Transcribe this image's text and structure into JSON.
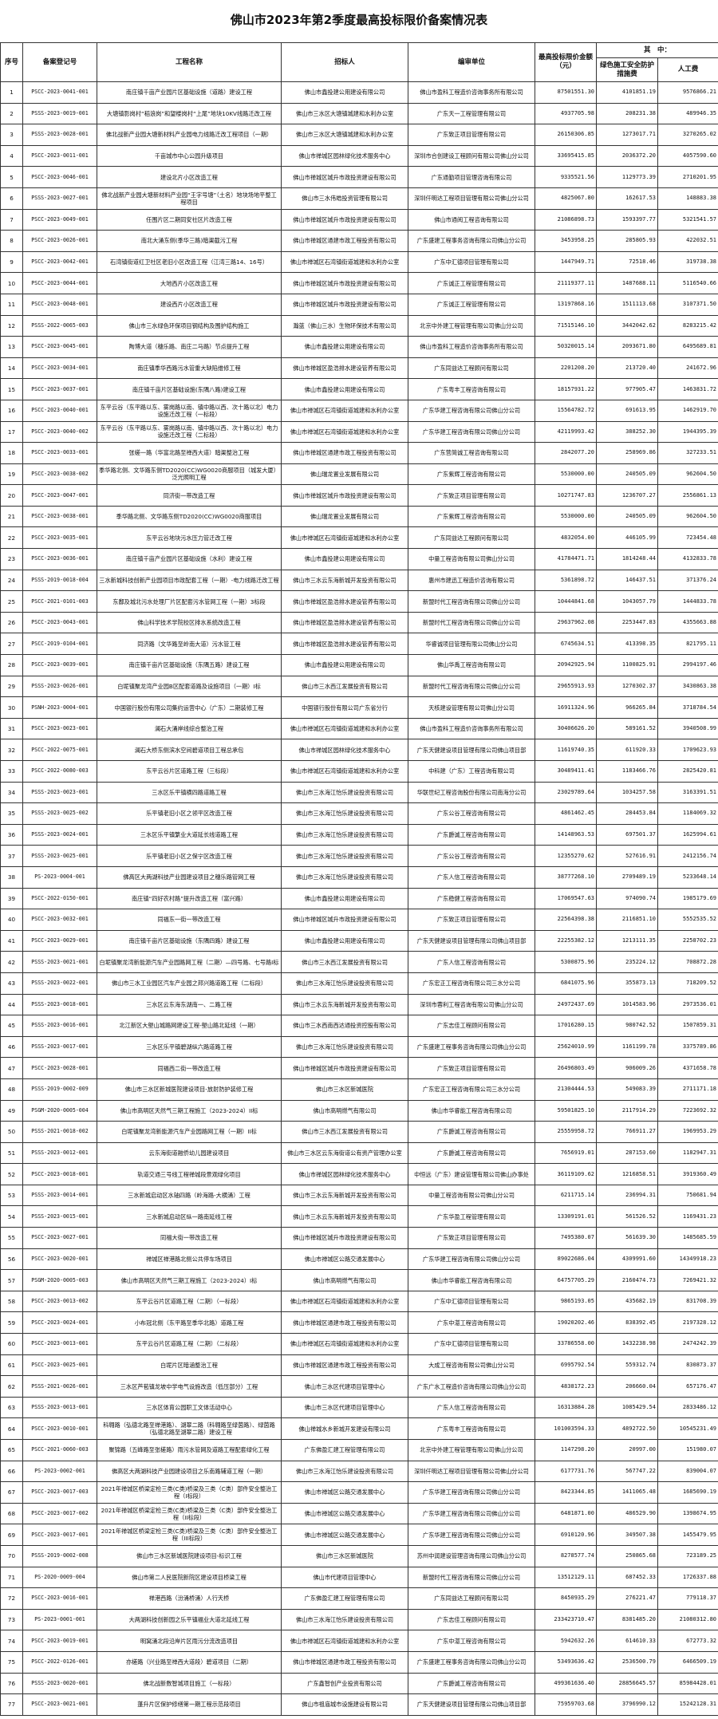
{
  "title": "佛山市2023年第2季度最高投标限价备案情况表",
  "headers": {
    "no": "序号",
    "code": "备案登记号",
    "name": "工程名称",
    "tenderer": "招标人",
    "compiler": "编审单位",
    "amount": "最高投标限价金额（元）",
    "of_which": "其　中：",
    "green": "绿色施工安全防护措施费",
    "labor": "人工费"
  },
  "rows": [
    [
      "1",
      "PSCC-2023-0041-001",
      "南庄镇千亩产业园片区基础设施（道路）建设工程",
      "佛山市鑫投建公用建设有限公司",
      "佛山市盈科工程造价咨询事务所有限公司",
      "87501551.30",
      "4101851.19",
      "9576866.21"
    ],
    [
      "2",
      "PSSS-2023-0019-001",
      "大塘镇影岗村“稻浪岗”和望楼岗村“上尾”地块10KV线路迁改工程",
      "佛山市三水区大塘镇城建和水利办公室",
      "广东天一工程管理有限公司",
      "4937705.98",
      "208231.38",
      "489946.35"
    ],
    [
      "3",
      "PSSS-2023-0028-001",
      "佛北战新产业园大塘新材料产业园电力线路迁改工程项目（一期）",
      "佛山市三水区大塘镇城建和水利办公室",
      "广东致正项目管理有限公司",
      "26150306.85",
      "1273017.71",
      "3270265.02"
    ],
    [
      "4",
      "PSCC-2023-0011-001",
      "千亩城市中心公园升级项目",
      "佛山市禅城区园林绿化技术服务中心",
      "深圳市合创建设工程顾问有限公司佛山分公司",
      "33695415.85",
      "2036372.20",
      "4057590.60"
    ],
    [
      "5",
      "PSCC-2023-0046-001",
      "建设北片小区改造工程",
      "佛山市禅城区城升市政投资建设有限公司",
      "广东通勤项目管理咨询有限公司",
      "9335521.56",
      "1129773.39",
      "2710201.95"
    ],
    [
      "6",
      "PSSS-2023-0027-001",
      "佛北战新产业园大塘新材料产业园“王字号塘”（土名）地块场地平整工程项目",
      "佛山市三水伟皓投资管理有限公司",
      "深圳仟明达工程项目管理有限公司佛山分公司",
      "4825067.80",
      "162617.53",
      "148883.38"
    ],
    [
      "7",
      "PSCC-2023-0049-001",
      "任围片区二期同安社区片改造工程",
      "佛山市禅城区城升市政投资建设有限公司",
      "佛山市通阅工程咨询有限公司",
      "21086898.73",
      "1593397.77",
      "5321541.57"
    ],
    [
      "8",
      "PSCC-2023-0026-001",
      "南北大涌东侧(季华三路)暗渠截污工程",
      "佛山市禅城区通建市政工程投资有限公司",
      "广东盛建工程事务咨询有限公司佛山分公司",
      "3453958.25",
      "285805.93",
      "422032.51"
    ],
    [
      "9",
      "PSCC-2023-0042-001",
      "石湾镇街道红卫社区老旧小区改造工程（江湾三路14、16号）",
      "佛山市禅城区石湾镇街道城建和水利办公室",
      "广东中汇德项目管理有限公司",
      "1447949.71",
      "72518.46",
      "319738.38"
    ],
    [
      "10",
      "PSCC-2023-0044-001",
      "大地西片小区改造工程",
      "佛山市禅城区城升市政投资建设有限公司",
      "广东诚正工程管理有限公司",
      "21119377.11",
      "1487688.11",
      "5116540.66"
    ],
    [
      "11",
      "PSCC-2023-0048-001",
      "建设西片小区改造工程",
      "佛山市禅城区城升市政投资建设有限公司",
      "广东诚正工程管理有限公司",
      "13197868.16",
      "1511113.68",
      "3107371.50"
    ],
    [
      "12",
      "PSSS-2022-0065-003",
      "佛山市三水绿色环保项目钢结构及围护结构施工",
      "瀚蓝（佛山三水）生物环保技术有限公司",
      "北京中外建工程管理有限公司佛山分公司",
      "71515146.10",
      "3442042.62",
      "8283215.42"
    ],
    [
      "13",
      "PSCC-2023-0045-001",
      "陶博大道（穗乐路、南庄二马路）节点提升工程",
      "佛山市鑫投建公用建设有限公司",
      "佛山市盈科工程造价咨询事务所有限公司",
      "50320015.14",
      "2093671.80",
      "6495689.81"
    ],
    [
      "14",
      "PSCC-2023-0034-001",
      "南庄镇季华西路污水管重大缺陷维修工程",
      "佛山市禅城区盈浩排水建设管养有限公司",
      "广东同益达工程顾问有限公司",
      "2201208.20",
      "213720.40",
      "241672.96"
    ],
    [
      "15",
      "PSCC-2023-0037-001",
      "南庄镇千亩片区基础设施(东隅八路)建设工程",
      "佛山市鑫投建公用建设有限公司",
      "广东粤丰工程咨询有限公司",
      "18157931.22",
      "977905.47",
      "1463831.72"
    ],
    [
      "16",
      "PSCC-2023-0040-001",
      "东平云谷（东平路以东、雾岗路以南、镇中路以西、次十路以北）电力设施迁改工程（一标段）",
      "佛山市禅城区石湾镇街道城建和水利办公室",
      "广东华建工程咨询有限公司佛山分公司",
      "15564782.72",
      "691613.95",
      "1462919.70"
    ],
    [
      "17",
      "PSCC-2023-0040-002",
      "东平云谷（东平路以东、雾岗路以南、镇中路以西、次十路以北）电力设施迁改工程（二标段）",
      "佛山市禅城区石湾镇街道城建和水利办公室",
      "广东华建工程咨询有限公司佛山分公司",
      "42119993.42",
      "388252.30",
      "1944395.39"
    ],
    [
      "18",
      "PSCC-2023-0033-001",
      "张槎一路（华富北路至禅西大道）暗渠整治工程",
      "佛山市禅城区通建市政工程投资有限公司",
      "广东营简诚工程咨询有限公司",
      "2842077.20",
      "258969.86",
      "327233.51"
    ],
    [
      "19",
      "PSCC-2023-0038-002",
      "季华路北侧、文华路东侧TD2020(CC)WG0020商服项目（城发大厦）泛光照明工程",
      "佛山瑞龙置业发展有限公司",
      "广东紫辉工程咨询有限公司",
      "5530000.00",
      "240505.09",
      "962604.50"
    ],
    [
      "20",
      "PSCC-2023-0047-001",
      "同济街一带改造工程",
      "佛山市禅城区城升市政投资建设有限公司",
      "广东致正项目管理有限公司",
      "10271747.83",
      "1236707.27",
      "2556861.13"
    ],
    [
      "21",
      "PSCC-2023-0038-001",
      "季华路北侧、文华路东侧TD2020(CC)WG0020商服项目",
      "佛山瑞龙置业发展有限公司",
      "广东紫辉工程咨询有限公司",
      "5530000.00",
      "240505.09",
      "962604.50"
    ],
    [
      "22",
      "PSCC-2023-0035-001",
      "东平云谷地块污水压力管迁改工程",
      "佛山市禅城区石湾镇街道城建和水利办公室",
      "广东同益达工程顾问有限公司",
      "4832054.00",
      "446105.99",
      "723454.48"
    ],
    [
      "23",
      "PSCC-2023-0036-001",
      "南庄镇千亩产业园片区基础设施（水利）建设工程",
      "佛山市鑫投建公用建设有限公司",
      "中量工程咨询有限公司佛山分公司",
      "41784471.71",
      "1814248.44",
      "4132833.78"
    ],
    [
      "24",
      "PSSS-2019-0018-004",
      "三水新城科技创新产业园项目市政配套工程（一期）-电力线路迁改工程",
      "佛山市三水云东海新城开发投资有限公司",
      "惠州市建迅工程造价咨询有限公司",
      "5361898.72",
      "146437.51",
      "371376.24"
    ],
    [
      "25",
      "PSCC-2021-0101-003",
      "东鄱及城北污水处理厂片区配套污水管网工程（一期）3标段",
      "佛山市禅城区盈浩排水建设管养有限公司",
      "新盟时代工程咨询有限公司佛山分公司",
      "10444841.68",
      "1043057.79",
      "1444833.78"
    ],
    [
      "26",
      "PSCC-2023-0043-001",
      "佛山科学技术学院校区排水系统改造工程",
      "佛山市禅城区盈浩排水建设管养有限公司",
      "新盟时代工程咨询有限公司佛山分公司",
      "29637962.08",
      "2253447.83",
      "4355663.88"
    ],
    [
      "27",
      "PSCC-2019-0104-001",
      "同济路（文华路至岭南大道）污水管工程",
      "佛山市禅城区盈浩排水建设管养有限公司",
      "华睿诚项目管理有限公司佛山分公司",
      "6745634.51",
      "413398.35",
      "821795.11"
    ],
    [
      "28",
      "PSCC-2023-0039-001",
      "南庄镇千亩片区基础设施（东隅五路）建设工程",
      "佛山市鑫投建公用建设有限公司",
      "佛山华禹工程咨询有限公司",
      "20942925.94",
      "1100825.91",
      "2994197.46"
    ],
    [
      "29",
      "PSSS-2023-0026-001",
      "白坭镇聚龙湾产业园B区配套道路及设施项目（一期）I标",
      "佛山市三水西江发展投资有限公司",
      "新盟时代工程咨询有限公司佛山分公司",
      "29655913.93",
      "1270302.37",
      "3430863.38"
    ],
    [
      "30",
      "PSNH-2023-0004-001",
      "中国银行股份有限公司集约运营中心（广东）二期装修工程",
      "中国银行股份有限公司广东省分行",
      "天核建设管理有限公司佛山分公司",
      "16911324.96",
      "966265.84",
      "3718784.54"
    ],
    [
      "31",
      "PSCC-2023-0023-001",
      "澜石大涌岸线综合整治工程",
      "佛山市禅城区石湾镇街道城建和水利办公室",
      "佛山市盈科工程造价咨询事务所有限公司",
      "30406626.20",
      "589161.52",
      "3940508.99"
    ],
    [
      "32",
      "PSCC-2022-0075-001",
      "澜石大桥东侧滨水空间碧道项目工程总承包",
      "佛山市禅城区园林绿化技术服务中心",
      "广东天健建设项目管理有限公司佛山项目部",
      "11619740.35",
      "611920.33",
      "1709623.93"
    ],
    [
      "33",
      "PSCC-2022-0080-003",
      "东平云谷片区道路工程（三标段）",
      "佛山市禅城区石湾镇街道城建和水利办公室",
      "中科建（广东）工程咨询有限公司",
      "30489411.41",
      "1183466.76",
      "2825420.81"
    ],
    [
      "34",
      "PSSS-2023-0023-001",
      "三水区乐平镇横四路道路工程",
      "佛山市三水海江怡乐建设投资有限公司",
      "华联世纪工程咨询股份有限公司南海分公司",
      "23029789.64",
      "1034257.58",
      "3163391.51"
    ],
    [
      "35",
      "PSSS-2023-0025-002",
      "乐平镇老旧小区之领平区改造工程",
      "佛山市三水海江怡乐建设投资有限公司",
      "广东公谷工程咨询有限公司",
      "4861462.45",
      "284453.84",
      "1184069.32"
    ],
    [
      "36",
      "PSSS-2023-0024-001",
      "三水区乐平镇繁业大道延长线道路工程",
      "佛山市三水海江怡乐建设投资有限公司",
      "广东爵诚工程咨询有限公司",
      "14148963.53",
      "697501.37",
      "1625994.61"
    ],
    [
      "37",
      "PSSS-2023-0025-001",
      "乐平镇老旧小区之保宁区改造工程",
      "佛山市三水海江怡乐建设投资有限公司",
      "广东公谷工程咨询有限公司",
      "12355270.62",
      "527616.91",
      "2412156.74"
    ],
    [
      "38",
      "PS-2023-0004-001",
      "佛高区大两湖科技产业园建设项目之穗乐路管网工程",
      "佛山市三水海江怡乐建设投资有限公司",
      "广东人信工程咨询有限公司",
      "38777268.10",
      "2709489.19",
      "5233648.14"
    ],
    [
      "39",
      "PSCC-2022-0150-001",
      "南庄镇“四好农村路”提升改造工程（富兴路）",
      "佛山市鑫投建公用建设有限公司",
      "广东稳健工程咨询有限公司",
      "17069547.63",
      "974090.74",
      "1985179.69"
    ],
    [
      "40",
      "PSCC-2023-0032-001",
      "同福东一街一带改造工程",
      "佛山市禅城区城升市政投资建设有限公司",
      "广东致正项目管理有限公司",
      "22564398.38",
      "2116851.10",
      "5552535.52"
    ],
    [
      "41",
      "PSCC-2023-0029-001",
      "南庄镇千亩片区基础设施（东隅四路）建设工程",
      "佛山市鑫投建公用建设有限公司",
      "广东天健建设项目管理有限公司佛山项目部",
      "22255382.12",
      "1213111.35",
      "2258702.23"
    ],
    [
      "42",
      "PSSS-2023-0021-001",
      "白坭镇聚龙湾新能源汽车产业园路网工程（二期）—四号路、七号路I标",
      "佛山市三水西江发展投资有限公司",
      "广东人信工程咨询有限公司",
      "5300875.96",
      "235224.12",
      "708872.28"
    ],
    [
      "43",
      "PSSS-2023-0022-001",
      "佛山市三水工业园区汽车产业园之邦兴路道路工程（二标段）",
      "佛山市三水海江怡乐建设投资有限公司",
      "广东宏正工程咨询有限公司三水分公司",
      "6841075.96",
      "355873.13",
      "718209.52"
    ],
    [
      "44",
      "PSSS-2023-0018-001",
      "三水区云东海东湖南一、二路工程",
      "佛山市三水云东海新城开发投资有限公司",
      "深圳市蓉利工程咨询有限公司佛山分公司",
      "24972437.69",
      "1014583.96",
      "2973536.01"
    ],
    [
      "45",
      "PSSS-2023-0016-001",
      "北江新区大塱山城路网建设工程-塱山路北延线（一期）",
      "佛山市三水西南西达通投资控股有限公司",
      "广东志佳工程顾问有限公司",
      "17016280.15",
      "980742.52",
      "1507859.31"
    ],
    [
      "46",
      "PSSS-2023-0017-001",
      "三水区乐平镇碧湖纵六路道路工程",
      "佛山市三水海江怡乐建设投资有限公司",
      "广东盛建工程事务咨询有限公司佛山分公司",
      "25624010.99",
      "1161199.78",
      "3375789.86"
    ],
    [
      "47",
      "PSCC-2023-0028-001",
      "同福西二街一带改造工程",
      "佛山市禅城区城升市政投资建设有限公司",
      "广东致正项目管理有限公司",
      "26496803.49",
      "906009.26",
      "4371658.78"
    ],
    [
      "48",
      "PSSS-2019-0002-009",
      "佛山市三水区新城医院建设项目-放射防护装修工程",
      "佛山市三水区新城医院",
      "广东宏正工程咨询有限公司三水分公司",
      "21304444.53",
      "549083.39",
      "2711171.18"
    ],
    [
      "49",
      "PSGM-2020-0005-004",
      "佛山市高明区天然气三期工程施工（2023-2024）II标",
      "佛山市高明燃气有限公司",
      "佛山市华睿能工程咨询有限公司",
      "59501825.10",
      "2117914.29",
      "7223692.32"
    ],
    [
      "50",
      "PSSS-2021-0018-002",
      "白坭镇聚龙湾新能源汽车产业园路网工程（一期）II标",
      "佛山市三水西江发展投资有限公司",
      "广东爵诚工程咨询有限公司",
      "25559958.72",
      "766911.27",
      "1969953.29"
    ],
    [
      "51",
      "PSSS-2023-0012-001",
      "云东海街道融侨幼儿园建设项目",
      "佛山市三水区云东海街道公有资产管理办公室",
      "广东爵诚工程咨询有限公司",
      "7656919.01",
      "287153.60",
      "1182947.31"
    ],
    [
      "52",
      "PSCC-2023-0018-001",
      "轨道交通三号线工程禅城段景观绿化项目",
      "佛山市禅城区园林绿化技术服务中心",
      "中恒远（广东）建设管理有限公司佛山办事处",
      "36119109.62",
      "1216858.51",
      "3919360.49"
    ],
    [
      "53",
      "PSSS-2023-0014-001",
      "三水新城启动区水轴四路（岭海路-大横涌）工程",
      "佛山市三水云东海新城开发投资有限公司",
      "中量工程咨询有限公司佛山分公司",
      "6211715.14",
      "236994.31",
      "750681.94"
    ],
    [
      "54",
      "PSSS-2023-0015-001",
      "三水新城启动区纵一路南延线工程",
      "佛山市三水云东海新城开发投资有限公司",
      "广东华盈工程管理有限公司",
      "13309191.01",
      "561526.52",
      "1169431.23"
    ],
    [
      "55",
      "PSCC-2023-0027-001",
      "同福大街一带改造工程",
      "佛山市禅城区城升市政投资建设有限公司",
      "广东致正项目管理有限公司",
      "7495380.07",
      "561639.30",
      "1485685.59"
    ],
    [
      "56",
      "PSCC-2023-0020-001",
      "禅城区禅港路北侧公共停车场项目",
      "佛山市禅城区公路交通发展中心",
      "广东华建工程咨询有限公司佛山分公司",
      "89022686.04",
      "4309991.60",
      "14349918.23"
    ],
    [
      "57",
      "PSGM-2020-0005-003",
      "佛山市高明区天然气三期工程施工（2023-2024）I标",
      "佛山市高明燃气有限公司",
      "佛山市华睿能工程咨询有限公司",
      "64757705.29",
      "2160474.73",
      "7269421.32"
    ],
    [
      "58",
      "PSCC-2023-0013-002",
      "东平云谷片区道路工程（二期）（一标段）",
      "佛山市禅城区石湾镇街道城建和水利办公室",
      "广东中汇德项目管理有限公司",
      "9865193.05",
      "435682.19",
      "831708.39"
    ],
    [
      "59",
      "PSCC-2023-0024-001",
      "小布冠北侧（东平路至季华北路）道路工程",
      "佛山市禅城区通建市政工程投资有限公司",
      "广东中湛工程咨询有限公司",
      "19020202.46",
      "838392.45",
      "2197328.12"
    ],
    [
      "60",
      "PSCC-2023-0013-001",
      "东平云谷片区道路工程（二期）（二标段）",
      "佛山市禅城区石湾镇街道城建和水利办公室",
      "广东中汇德项目管理有限公司",
      "33786558.00",
      "1432238.98",
      "2474242.39"
    ],
    [
      "61",
      "PSCC-2023-0025-001",
      "白坭片区暗涵整治工程",
      "佛山市禅城区通建市政工程投资有限公司",
      "大成工程咨询有限公司佛山分公司",
      "6995792.54",
      "559312.74",
      "830873.37"
    ],
    [
      "62",
      "PSSS-2021-0026-001",
      "三水区芦苞镇龙坡中学电气设施改造（低压部分）工程",
      "佛山市三水区代建项目管理中心",
      "广东广水工程造价咨询有限公司佛山分公司",
      "4838172.23",
      "206660.04",
      "657176.47"
    ],
    [
      "63",
      "PSSS-2023-0013-001",
      "三水区体育公园职工文体活动中心",
      "佛山市三水区代建项目管理中心",
      "广东人信工程咨询有限公司",
      "16313884.28",
      "1085429.54",
      "2833486.12"
    ],
    [
      "64",
      "PSCC-2023-0010-001",
      "科翱路（弘德北路至禅港路）、湖翠二路（科翱路至绿茵路）、绿茵路（弘德北路至湖翠二路）建设工程",
      "佛山禅城水乡新城开发建设有限公司",
      "广东粤丰工程咨询有限公司",
      "101003594.33",
      "4892722.50",
      "10545231.49"
    ],
    [
      "65",
      "PSCC-2021-0060-003",
      "聚锦路（五峰路至张槎路）雨污水管网及道路工程配套绿化工程",
      "广东佛盈汇建工程管理有限公司",
      "北京中外建工程管理有限公司佛山分公司",
      "1147298.20",
      "20997.00",
      "151980.07"
    ],
    [
      "66",
      "PS-2023-0002-001",
      "佛高区大两湖科技产业园建设项目之乐南路辅道工程（一期）",
      "佛山市三水海江怡乐建设投资有限公司",
      "深圳仟明达工程项目管理有限公司佛山分公司",
      "6177731.76",
      "567747.22",
      "839004.07"
    ],
    [
      "67",
      "PSCC-2023-0017-003",
      "2021年禅城区桥梁定检三类(C类)桥梁及三类（C类）部件安全整治工程（I标段）",
      "佛山市禅城区公路交通发展中心",
      "广东华建工程咨询有限公司佛山分公司",
      "8423344.85",
      "1411065.48",
      "1685690.19"
    ],
    [
      "68",
      "PSCC-2023-0017-002",
      "2021年禅城区桥梁定检三类(C类)桥梁及三类（C类）部件安全整治工程（II标段）",
      "佛山市禅城区公路交通发展中心",
      "广东华建工程咨询有限公司佛山分公司",
      "6481871.00",
      "486529.90",
      "1398674.95"
    ],
    [
      "69",
      "PSCC-2023-0017-001",
      "2021年禅城区桥梁定检三类(C类)桥梁及三类（C类）部件安全整治工程（III标段）",
      "佛山市禅城区公路交通发展中心",
      "广东华建工程咨询有限公司佛山分公司",
      "6910120.96",
      "349507.38",
      "1455479.95"
    ],
    [
      "70",
      "PSSS-2019-0002-008",
      "佛山市三水区新城医院建设项目-标识工程",
      "佛山市三水区新城医院",
      "苏州中润建设管理咨询有限公司佛山分公司",
      "8278577.74",
      "250865.68",
      "723189.25"
    ],
    [
      "71",
      "PS-2020-0009-004",
      "佛山市第二人民医院新院区建设项目桥梁工程",
      "佛山市代建项目管理中心",
      "新盟时代工程咨询有限公司佛山分公司",
      "13512129.11",
      "687452.33",
      "1726337.88"
    ],
    [
      "72",
      "PSCC-2023-0016-001",
      "禅港西路（汾涌桥涌）人行天桥",
      "广东佛盈汇建工程管理有限公司",
      "广东同益达工程顾问有限公司",
      "8450935.29",
      "276221.47",
      "779118.37"
    ],
    [
      "73",
      "PS-2023-0001-001",
      "大两湖科技创新园之乐平镇福业大道北延线工程",
      "佛山市三水海江怡乐建设投资有限公司",
      "广东志佳工程顾问有限公司",
      "233423710.47",
      "8381485.20",
      "21080312.80"
    ],
    [
      "74",
      "PSCC-2023-0019-001",
      "明窝涌北段沿岸片区雨污分流改造项目",
      "佛山市禅城区石湾镇街道城建和水利办公室",
      "广东中湛工程咨询有限公司",
      "5942632.26",
      "614610.33",
      "672773.32"
    ],
    [
      "75",
      "PSCC-2022-0126-001",
      "亦槎路（兴业路至禅西大道段）碧道项目（二期）",
      "佛山市禅城区通建市政工程投资有限公司",
      "广东盛建工程事务咨询有限公司佛山分公司",
      "53493636.42",
      "2536500.79",
      "6466509.19"
    ],
    [
      "76",
      "PSSS-2023-0020-001",
      "佛北战新数智城项目施工（一标段）",
      "广东鑫智创产业投资有限公司",
      "广东爵诚工程咨询有限公司",
      "499361636.40",
      "28856645.57",
      "85984428.01"
    ],
    [
      "77",
      "PSCC-2023-0021-001",
      "蓬升片区保护修缮第一期工程示范段项目",
      "佛山市祖庙城市设施建设有限公司",
      "广东天健建设项目管理有限公司佛山项目部",
      "75959703.68",
      "3796990.12",
      "15242128.31"
    ]
  ]
}
